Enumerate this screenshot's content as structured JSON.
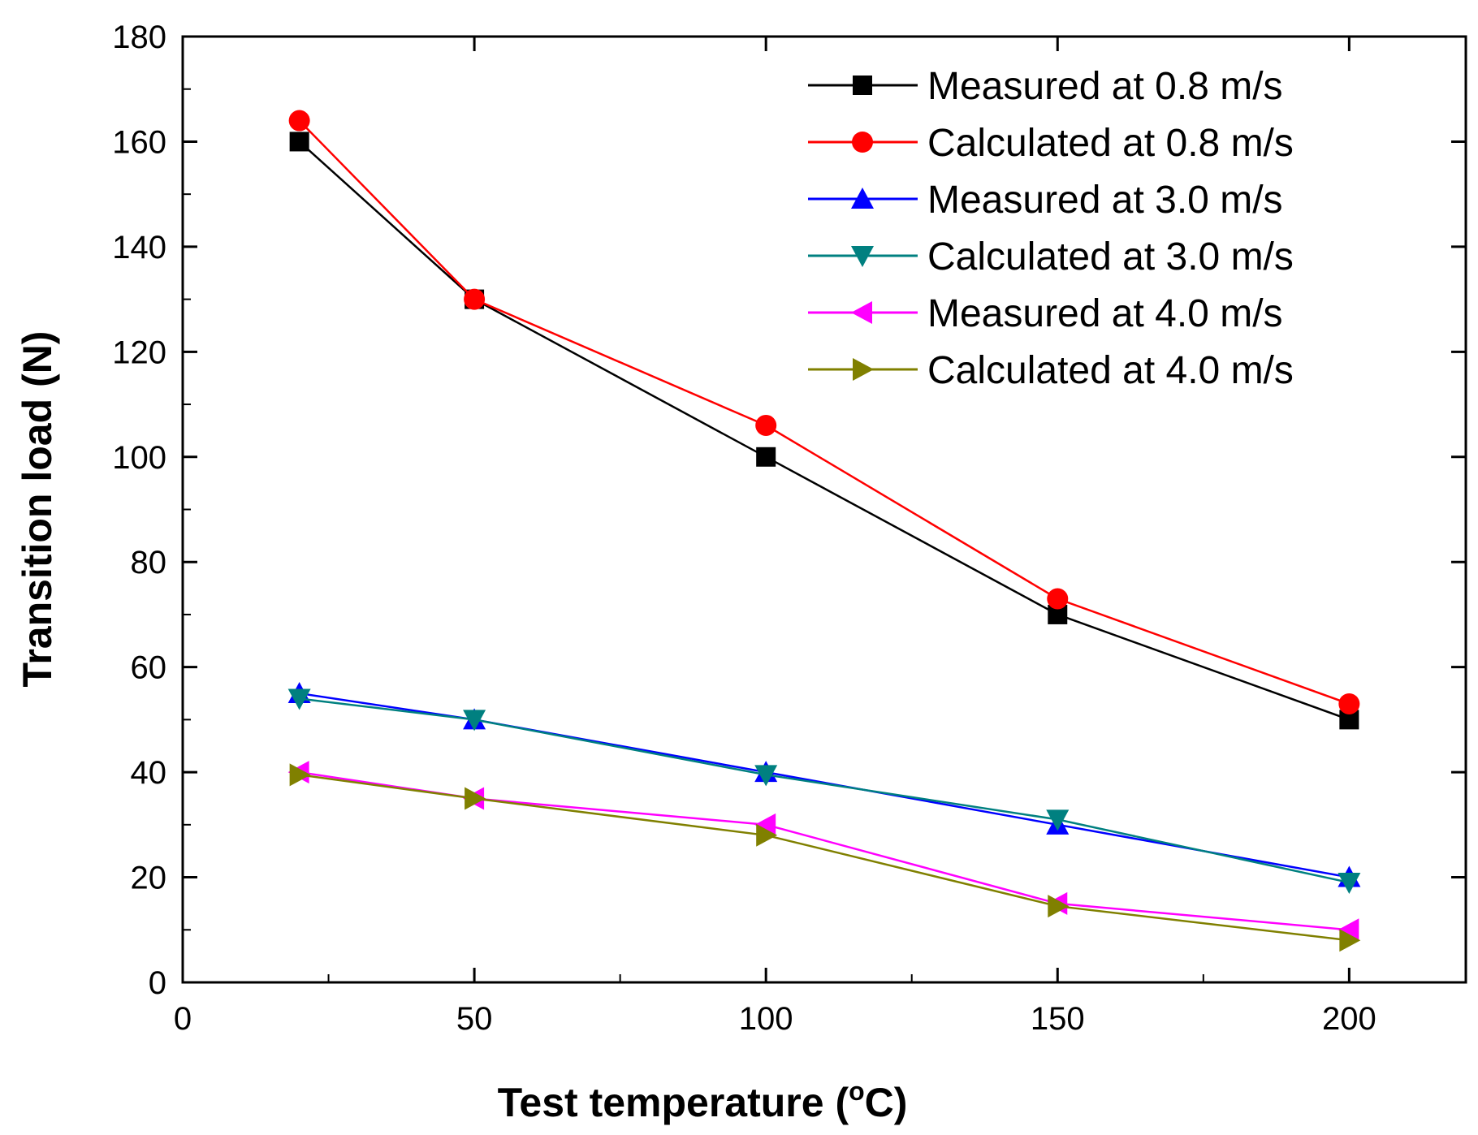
{
  "chart_data": {
    "type": "line",
    "title": "",
    "xlabel": {
      "prefix": "Test temperature (",
      "superscript": "o",
      "suffix": "C)"
    },
    "ylabel": "Transition load (N)",
    "xlim": [
      0,
      220
    ],
    "ylim": [
      0,
      180
    ],
    "xticks": [
      0,
      50,
      100,
      150,
      200
    ],
    "yticks": [
      0,
      20,
      40,
      60,
      80,
      100,
      120,
      140,
      160,
      180
    ],
    "x": [
      20,
      50,
      100,
      150,
      200
    ],
    "legend_position": "top-right",
    "grid": false,
    "series": [
      {
        "name": " Measured at 0.8 m/s",
        "color": "#000000",
        "marker": "square",
        "values": [
          160,
          130,
          100,
          70,
          50
        ]
      },
      {
        "name": "Calculated at 0.8 m/s",
        "color": "#ff0000",
        "marker": "circle",
        "values": [
          164,
          130,
          106,
          73,
          53
        ]
      },
      {
        "name": "Measured at 3.0 m/s",
        "color": "#0000ff",
        "marker": "triangle-up",
        "values": [
          55,
          50,
          40,
          30,
          20
        ]
      },
      {
        "name": "Calculated at 3.0 m/s",
        "color": "#008080",
        "marker": "triangle-down",
        "values": [
          54,
          50,
          39.5,
          31,
          19
        ]
      },
      {
        "name": "Measured at 4.0 m/s",
        "color": "#ff00ff",
        "marker": "triangle-left",
        "values": [
          40,
          35,
          30,
          15,
          10
        ]
      },
      {
        "name": "Calculated at 4.0 m/s",
        "color": "#808000",
        "marker": "triangle-right",
        "values": [
          39.5,
          35,
          28,
          14.5,
          8
        ]
      }
    ]
  }
}
